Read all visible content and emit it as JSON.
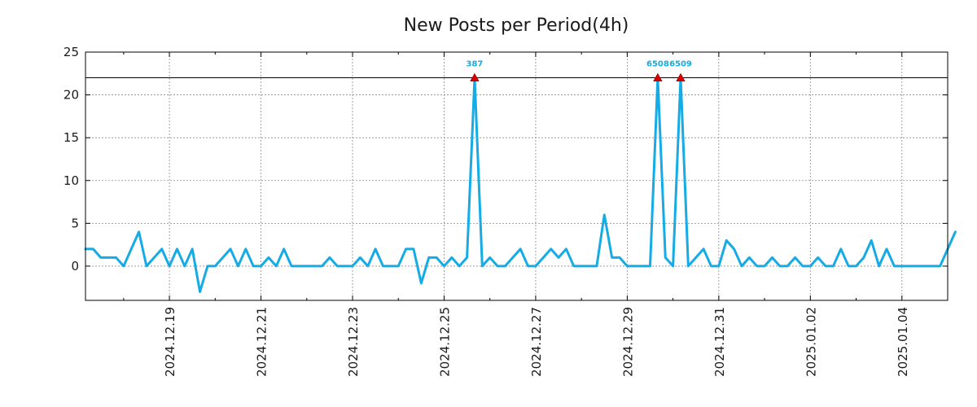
{
  "chart_data": {
    "type": "line",
    "title": "New Posts per Period(4h)",
    "xlabel": "",
    "ylabel": "",
    "ylim": [
      -4,
      25
    ],
    "yticks": [
      0,
      5,
      10,
      15,
      20,
      25
    ],
    "x_start": "2024.12.17 08:00",
    "x_step_hours": 4,
    "xticks": [
      {
        "label": "2024.12.19",
        "index": 11
      },
      {
        "label": "2024.12.21",
        "index": 23
      },
      {
        "label": "2024.12.23",
        "index": 35
      },
      {
        "label": "2024.12.25",
        "index": 47
      },
      {
        "label": "2024.12.27",
        "index": 59
      },
      {
        "label": "2024.12.29",
        "index": 71
      },
      {
        "label": "2024.12.31",
        "index": 83
      },
      {
        "label": "2025.01.02",
        "index": 95
      },
      {
        "label": "2025.01.04",
        "index": 107
      }
    ],
    "x_index_range": [
      0,
      113
    ],
    "threshold": 22,
    "series": [
      {
        "name": "New Posts",
        "color": "#15abe5",
        "values": [
          2,
          2,
          1,
          1,
          1,
          0,
          2,
          4,
          0,
          1,
          2,
          0,
          2,
          0,
          2,
          -3,
          0,
          0,
          1,
          2,
          0,
          2,
          0,
          0,
          1,
          0,
          2,
          0,
          0,
          0,
          0,
          0,
          1,
          0,
          0,
          0,
          1,
          0,
          2,
          0,
          0,
          0,
          2,
          2,
          -2,
          1,
          1,
          0,
          1,
          0,
          1,
          22,
          0,
          1,
          0,
          0,
          1,
          2,
          0,
          0,
          1,
          2,
          1,
          2,
          0,
          0,
          0,
          0,
          6,
          1,
          1,
          0,
          0,
          0,
          0,
          22,
          1,
          0,
          22,
          0,
          1,
          2,
          0,
          0,
          3,
          2,
          0,
          1,
          0,
          0,
          1,
          0,
          0,
          1,
          0,
          0,
          1,
          0,
          0,
          2,
          0,
          0,
          1,
          3,
          0,
          2,
          0,
          0,
          0,
          0,
          0,
          0,
          0,
          2,
          4
        ]
      }
    ],
    "annotations": [
      {
        "index": 51,
        "value": 22,
        "label": "387",
        "color": "#15abe5",
        "marker_color": "#dd0000"
      },
      {
        "index": 75,
        "value": 22,
        "label": "6508",
        "color": "#15abe5",
        "marker_color": "#dd0000"
      },
      {
        "index": 78,
        "value": 22,
        "label": "6509",
        "color": "#15abe5",
        "marker_color": "#dd0000"
      }
    ]
  }
}
